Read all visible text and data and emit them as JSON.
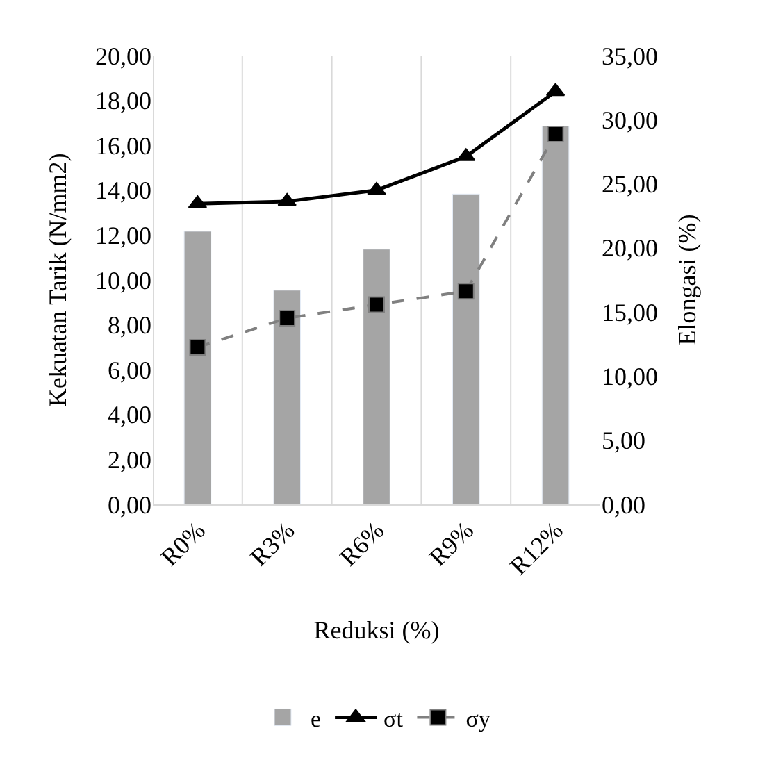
{
  "chart_data": {
    "type": "bar",
    "xlabel": "Reduksi (%)",
    "ylabel": "Kekuatan Tarik (N/mm2)",
    "y2label": "Elongasi (%)",
    "categories": [
      "R0%",
      "R3%",
      "R6%",
      "R9%",
      "R12%"
    ],
    "series": [
      {
        "name": "e",
        "axis": "y2",
        "color": "#a5a5a5",
        "values": [
          21.3,
          16.7,
          19.9,
          24.2,
          29.5
        ]
      },
      {
        "name": "σt",
        "type": "line",
        "axis": "y",
        "color": "#000000",
        "marker": "triangle",
        "line_style": "solid",
        "values": [
          13.4,
          13.5,
          14.0,
          15.5,
          18.4
        ]
      },
      {
        "name": "σy",
        "type": "line",
        "axis": "y",
        "color": "#808080",
        "marker": "square",
        "line_style": "dashed",
        "values": [
          7.0,
          8.3,
          8.9,
          9.5,
          16.5
        ]
      }
    ],
    "ylim": [
      0,
      20
    ],
    "yticks": [
      {
        "value": 0,
        "label": "0,00"
      },
      {
        "value": 2,
        "label": "2,00"
      },
      {
        "value": 4,
        "label": "4,00"
      },
      {
        "value": 6,
        "label": "6,00"
      },
      {
        "value": 8,
        "label": "8,00"
      },
      {
        "value": 10,
        "label": "10,00"
      },
      {
        "value": 12,
        "label": "12,00"
      },
      {
        "value": 14,
        "label": "14,00"
      },
      {
        "value": 16,
        "label": "16,00"
      },
      {
        "value": 18,
        "label": "18,00"
      },
      {
        "value": 20,
        "label": "20,00"
      }
    ],
    "y2lim": [
      0,
      35
    ],
    "y2ticks": [
      {
        "value": 0,
        "label": "0,00"
      },
      {
        "value": 5,
        "label": "5,00"
      },
      {
        "value": 10,
        "label": "10,00"
      },
      {
        "value": 15,
        "label": "15,00"
      },
      {
        "value": 20,
        "label": "20,00"
      },
      {
        "value": 25,
        "label": "25,00"
      },
      {
        "value": 30,
        "label": "30,00"
      },
      {
        "value": 35,
        "label": "35,00"
      }
    ],
    "grid": "x",
    "legend": "bottom"
  }
}
